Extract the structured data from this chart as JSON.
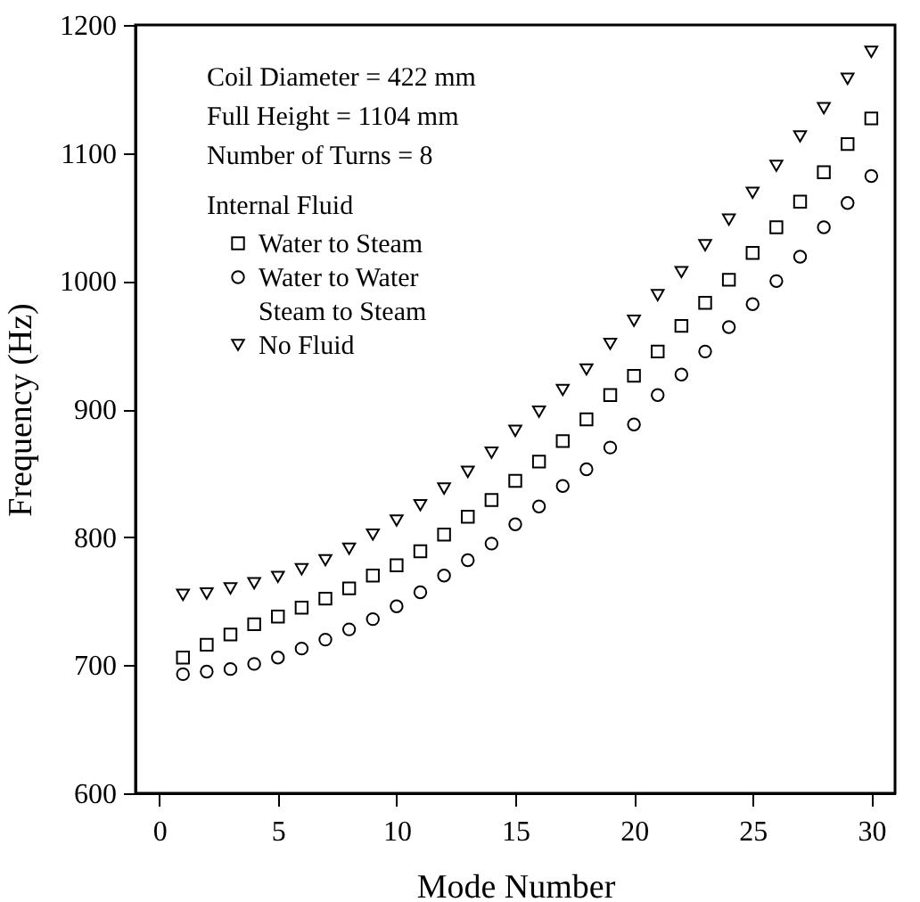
{
  "chart_data": {
    "type": "scatter",
    "xlabel": "Mode Number",
    "ylabel": "Frequency (Hz)",
    "legend_title": "Internal Fluid",
    "annotations": [
      "Coil Diameter = 422 mm",
      "Full Height = 1104 mm",
      "Number of Turns = 8"
    ],
    "x": [
      1,
      2,
      3,
      4,
      5,
      6,
      7,
      8,
      9,
      10,
      11,
      12,
      13,
      14,
      15,
      16,
      17,
      18,
      19,
      20,
      21,
      22,
      23,
      24,
      25,
      26,
      27,
      28,
      29,
      30
    ],
    "series": [
      {
        "name": "Water to Steam",
        "color": "#000000",
        "marker": "square",
        "values": [
          706,
          716,
          724,
          732,
          738,
          745,
          752,
          760,
          770,
          778,
          789,
          802,
          816,
          829,
          844,
          859,
          875,
          892,
          911,
          926,
          945,
          965,
          983,
          1001,
          1022,
          1042,
          1062,
          1085,
          1107,
          1127
        ]
      },
      {
        "name": "Water to Water",
        "color": "#000000",
        "marker": "circle",
        "values": [
          693,
          695,
          697,
          701,
          706,
          713,
          720,
          728,
          736,
          746,
          757,
          770,
          782,
          795,
          810,
          824,
          840,
          853,
          870,
          888,
          911,
          927,
          945,
          964,
          982,
          1000,
          1019,
          1042,
          1061,
          1082
        ]
      },
      {
        "name": "Steam to Steam",
        "color": "#000000",
        "marker": "none",
        "values": [
          null,
          null,
          null,
          null,
          null,
          null,
          null,
          null,
          null,
          null,
          null,
          null,
          null,
          null,
          null,
          null,
          null,
          null,
          null,
          null,
          null,
          null,
          null,
          null,
          null,
          null,
          null,
          null,
          null,
          null
        ]
      },
      {
        "name": "No Fluid",
        "color": "#000000",
        "marker": "triangle",
        "values": [
          755,
          756,
          760,
          764,
          769,
          775,
          782,
          791,
          802,
          813,
          825,
          838,
          851,
          866,
          883,
          898,
          915,
          931,
          951,
          969,
          989,
          1007,
          1028,
          1048,
          1069,
          1090,
          1113,
          1135,
          1158,
          1179
        ]
      }
    ],
    "xlim": [
      -1,
      31
    ],
    "ylim": [
      600,
      1200
    ],
    "xticks": [
      0,
      5,
      10,
      15,
      20,
      25,
      30
    ],
    "yticks": [
      600,
      700,
      800,
      900,
      1000,
      1100,
      1200
    ],
    "grid": false,
    "legend": "top left"
  }
}
